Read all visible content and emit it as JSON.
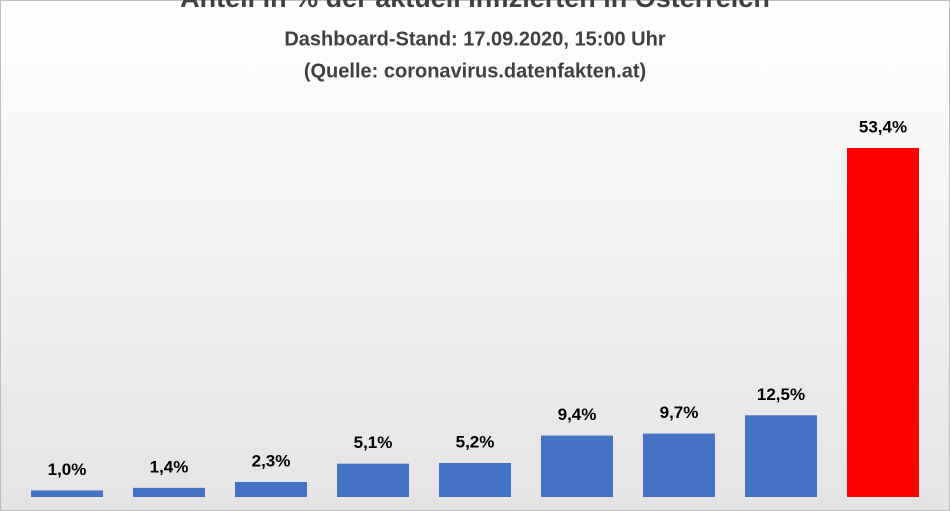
{
  "chart_data": {
    "type": "bar",
    "title": "Anteil in % der aktuell Infizierten in Österreich",
    "subtitle": [
      "Dashboard-Stand: 17.09.2020, 15:00 Uhr",
      "(Quelle: coronavirus.datenfakten.at)"
    ],
    "categories": [
      null,
      null,
      null,
      null,
      null,
      null,
      null,
      null,
      null
    ],
    "values": [
      1.0,
      1.4,
      2.3,
      5.1,
      5.2,
      9.4,
      9.7,
      12.5,
      53.4
    ],
    "value_labels": [
      "1,0%",
      "1,4%",
      "2,3%",
      "5,1%",
      "5,2%",
      "9,4%",
      "9,7%",
      "12,5%",
      "53,4%"
    ],
    "colors": [
      "#4472c4",
      "#4472c4",
      "#4472c4",
      "#4472c4",
      "#4472c4",
      "#4472c4",
      "#4472c4",
      "#4472c4",
      "#ff0000"
    ]
  }
}
